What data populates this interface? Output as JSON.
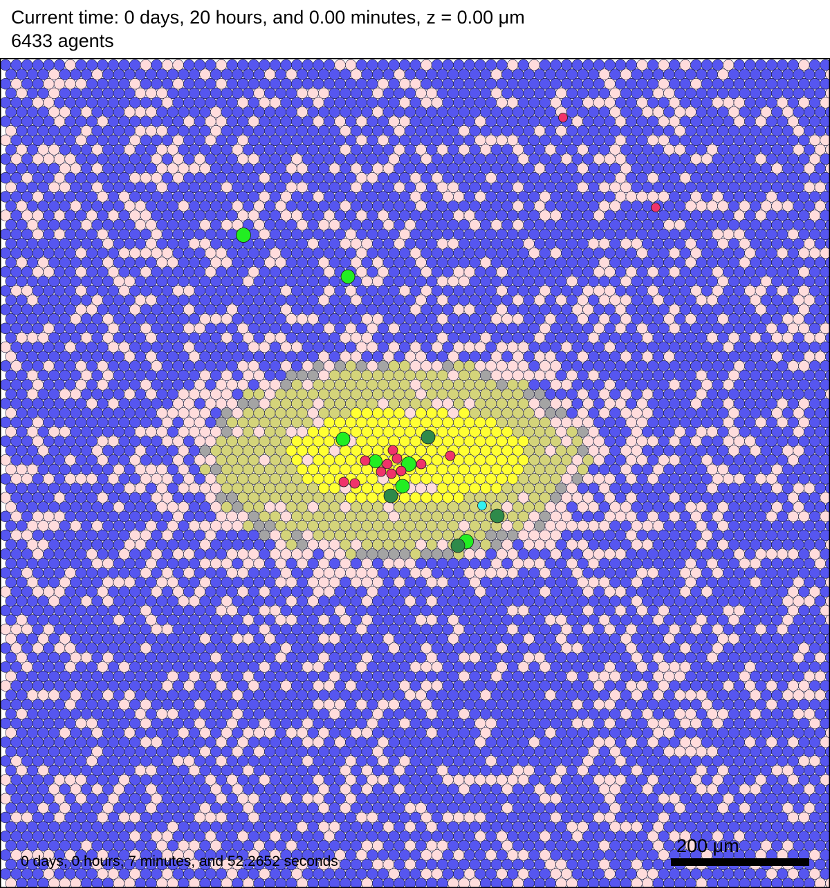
{
  "header": {
    "time_line": "Current time: 0 days, 20 hours, and 0.00 minutes, z = 0.00 μm",
    "agents_line": "6433 agents"
  },
  "footer": {
    "sim_time": "0 days, 0 hours, 7 minutes, and 52.2652 seconds"
  },
  "scale_bar": {
    "label": "200 μm"
  },
  "colors": {
    "background_cell": "#5656f0",
    "pink_cell": "#ffdcdc",
    "yellow_core": "#ffff33",
    "olive_ring": "#d4d47a",
    "grey_ring": "#a4a4a4",
    "bright_green_agent": "#22ee22",
    "dark_green_agent": "#2e8a4a",
    "magenta_agent": "#f0336a",
    "cyan_agent": "#33f0f0",
    "cell_outline": "#1a1a3a"
  }
}
